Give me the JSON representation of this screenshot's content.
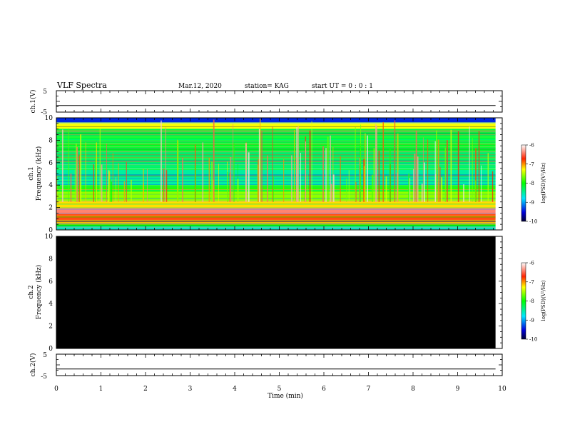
{
  "header": {
    "title": "VLF Spectra",
    "date": "Mar.12, 2020",
    "station": "station= KAG",
    "start": "start UT = 0 : 0 : 1"
  },
  "chart_data": [
    {
      "type": "line",
      "name": "ch1-waveform",
      "ylabel": "ch.1(V)",
      "ylim": [
        -5,
        5
      ],
      "yticks": [
        "5",
        "-5"
      ],
      "xlim": [
        0,
        10
      ],
      "series": [
        {
          "x": [
            0,
            9.85
          ],
          "values": [
            -1.9,
            -1.9
          ]
        }
      ]
    },
    {
      "type": "heatmap",
      "name": "ch1-spectrogram",
      "ylabel_line1": "ch.1",
      "ylabel_line2": "Frequency (kHz)",
      "ylim": [
        0,
        10
      ],
      "yticks": [
        "0",
        "2",
        "4",
        "6",
        "8",
        "10"
      ],
      "xlim": [
        0,
        10
      ],
      "data_xmax": 9.85,
      "colorbar": {
        "label": "log(PSD)(V²/Hz)",
        "range": [
          -10,
          -6
        ],
        "ticks": [
          "-6",
          "-7",
          "-8",
          "-9",
          "-10"
        ]
      },
      "bands": [
        {
          "f0": 0.0,
          "f1": 0.3,
          "value": -8.6
        },
        {
          "f0": 0.3,
          "f1": 0.5,
          "value": -8.0
        },
        {
          "f0": 0.5,
          "f1": 0.9,
          "value": -7.1
        },
        {
          "f0": 0.9,
          "f1": 1.4,
          "value": -6.8
        },
        {
          "f0": 1.4,
          "f1": 2.0,
          "value": -6.4
        },
        {
          "f0": 2.0,
          "f1": 2.6,
          "value": -7.2
        },
        {
          "f0": 2.6,
          "f1": 3.4,
          "value": -7.6
        },
        {
          "f0": 3.4,
          "f1": 4.0,
          "value": -7.9
        },
        {
          "f0": 4.0,
          "f1": 5.5,
          "value": -8.5
        },
        {
          "f0": 5.5,
          "f1": 7.0,
          "value": -8.3
        },
        {
          "f0": 7.0,
          "f1": 8.0,
          "value": -8.1
        },
        {
          "f0": 8.0,
          "f1": 9.0,
          "value": -8.2
        },
        {
          "f0": 9.0,
          "f1": 9.6,
          "value": -7.3
        },
        {
          "f0": 9.6,
          "f1": 10.0,
          "value": -9.4
        }
      ]
    },
    {
      "type": "heatmap",
      "name": "ch2-spectrogram",
      "ylabel_line1": "ch.2",
      "ylabel_line2": "Frequency (kHz)",
      "ylim": [
        0,
        10
      ],
      "yticks": [
        "0",
        "2",
        "4",
        "6",
        "8",
        "10"
      ],
      "xlim": [
        0,
        10
      ],
      "data_xmax": 9.85,
      "fill": "no data (black)",
      "colorbar": {
        "label": "log(PSD)(V²/Hz)",
        "range": [
          -10,
          -6
        ],
        "ticks": [
          "-6",
          "-7",
          "-8",
          "-9",
          "-10"
        ]
      }
    },
    {
      "type": "line",
      "name": "ch2-waveform",
      "ylabel": "ch.2(V)",
      "ylim": [
        -5,
        5
      ],
      "yticks": [
        "5",
        "-5"
      ],
      "xlim": [
        0,
        10
      ],
      "xlabel": "Time (min)",
      "xticks": [
        "0",
        "1",
        "2",
        "3",
        "4",
        "5",
        "6",
        "7",
        "8",
        "9",
        "10"
      ],
      "series": [
        {
          "x": [
            0,
            9.85
          ],
          "values": [
            -1.9,
            -1.9
          ]
        }
      ]
    }
  ]
}
